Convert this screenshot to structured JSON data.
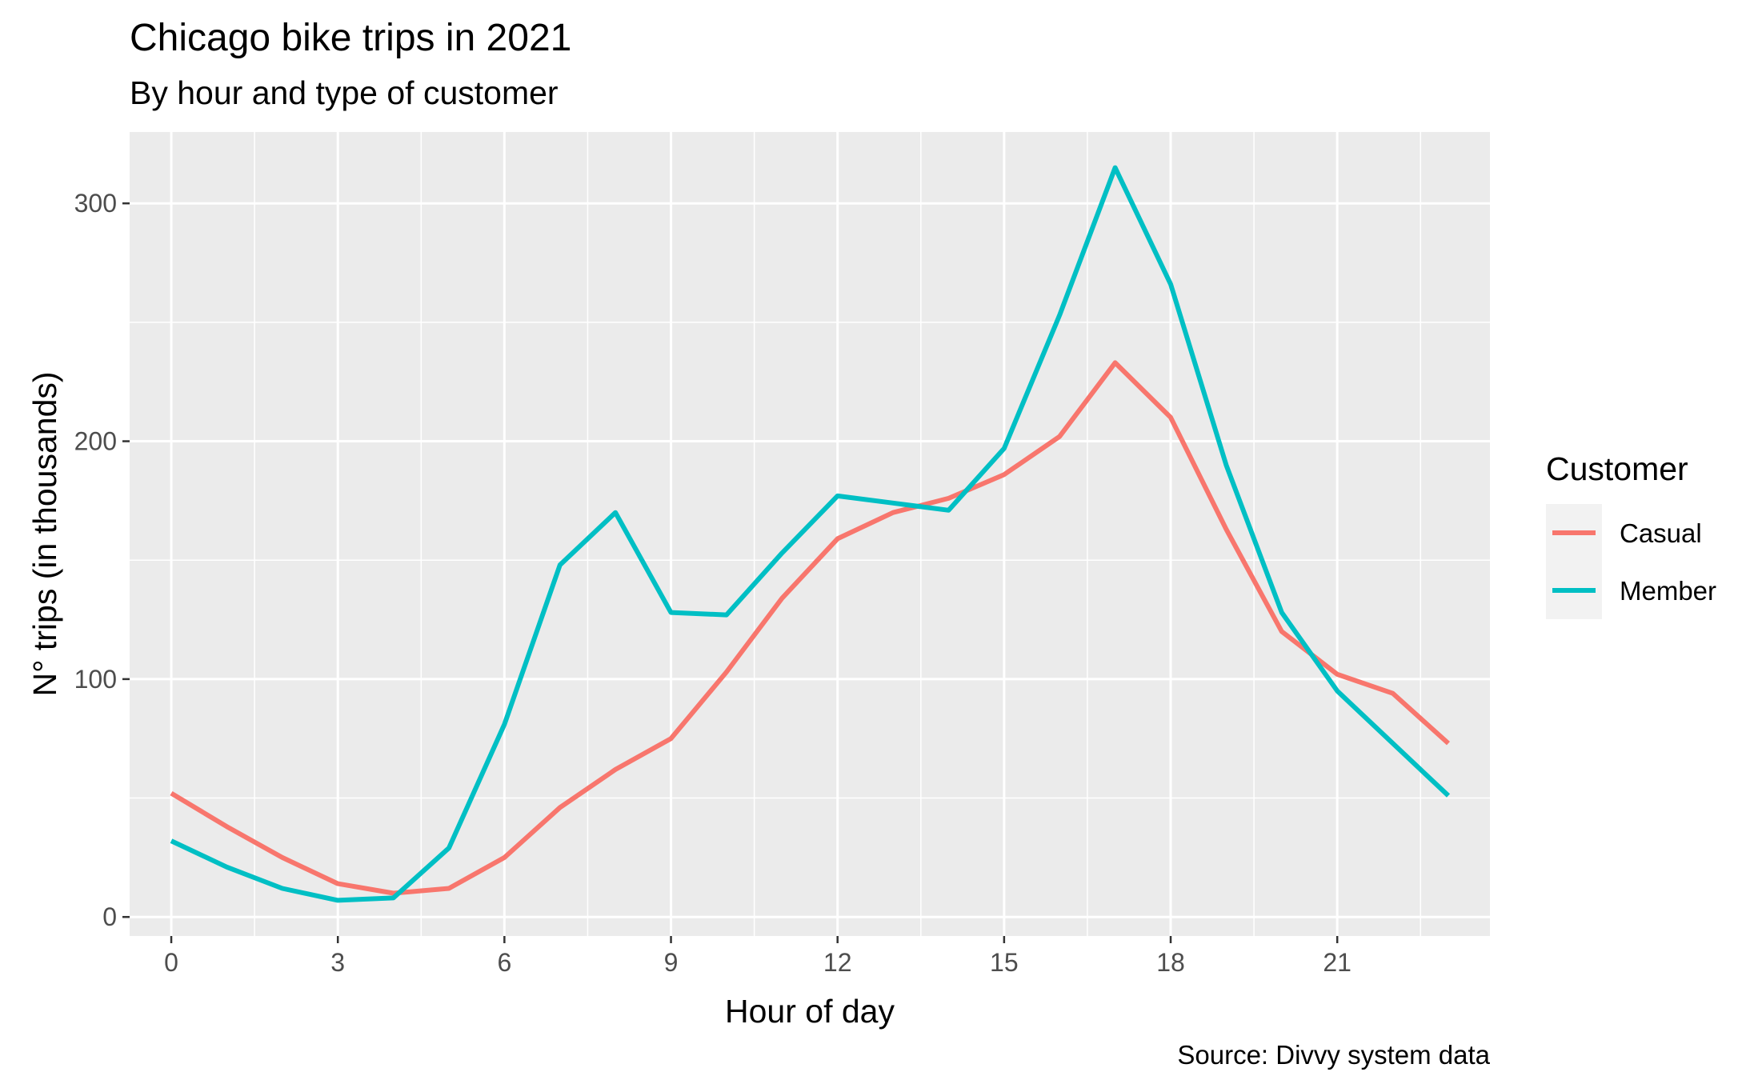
{
  "chart_data": {
    "type": "line",
    "title": "Chicago bike trips in 2021",
    "subtitle": "By hour and type of customer",
    "xlabel": "Hour of day",
    "ylabel": "N° trips (in thousands)",
    "caption": "Source: Divvy system data",
    "x": [
      0,
      1,
      2,
      3,
      4,
      5,
      6,
      7,
      8,
      9,
      10,
      11,
      12,
      13,
      14,
      15,
      16,
      17,
      18,
      19,
      20,
      21,
      22,
      23
    ],
    "xlim": [
      -0.75,
      23.75
    ],
    "ylim": [
      -8,
      330
    ],
    "xticks": [
      0,
      3,
      6,
      9,
      12,
      15,
      18,
      21
    ],
    "xtick_labels": [
      "0",
      "3",
      "6",
      "9",
      "12",
      "15",
      "18",
      "21"
    ],
    "yticks": [
      0,
      100,
      200,
      300
    ],
    "ytick_labels": [
      "0",
      "100",
      "200",
      "300"
    ],
    "grid": true,
    "legend": {
      "title": "Customer",
      "position": "right"
    },
    "series": [
      {
        "name": "Casual",
        "color": "#F8766D",
        "values": [
          52,
          38,
          25,
          14,
          10,
          12,
          25,
          46,
          62,
          75,
          103,
          134,
          159,
          170,
          176,
          186,
          202,
          233,
          210,
          163,
          120,
          102,
          94,
          73
        ]
      },
      {
        "name": "Member",
        "color": "#00BFC4",
        "values": [
          32,
          21,
          12,
          7,
          8,
          29,
          81,
          148,
          170,
          128,
          127,
          153,
          177,
          174,
          171,
          197,
          253,
          315,
          266,
          190,
          128,
          95,
          73,
          51
        ]
      }
    ],
    "colors": {
      "panel_background": "#EBEBEB",
      "grid": "#FFFFFF",
      "legend_key": "#F2F2F2"
    }
  }
}
